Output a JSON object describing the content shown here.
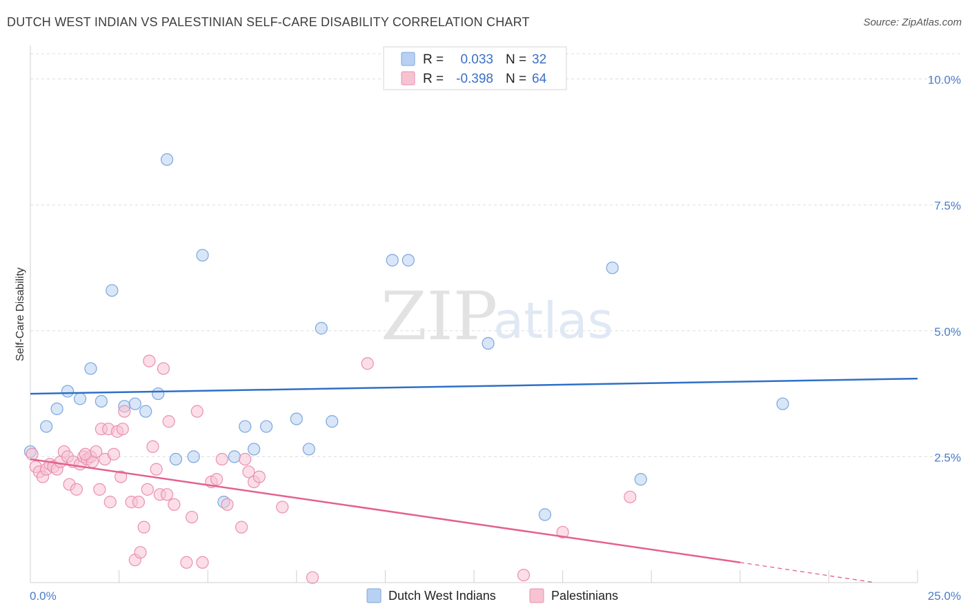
{
  "header": {
    "title": "DUTCH WEST INDIAN VS PALESTINIAN SELF-CARE DISABILITY CORRELATION CHART",
    "source": "Source: ZipAtlas.com"
  },
  "watermark": {
    "part1": "ZIP",
    "part2": "atlas"
  },
  "colors": {
    "blue_fill": "#b8d1f3",
    "blue_stroke": "#7aa5dd",
    "blue_line": "#2e6fc7",
    "pink_fill": "#f7c3d3",
    "pink_stroke": "#ea8fae",
    "pink_line": "#e4608e"
  },
  "legend": {
    "rows": [
      {
        "r_label": "R =",
        "r_value": "0.033",
        "n_label": "N =",
        "n_value": "32"
      },
      {
        "r_label": "R =",
        "r_value": "-0.398",
        "n_label": "N =",
        "n_value": "64"
      }
    ]
  },
  "bottom_legend": [
    "Dutch West Indians",
    "Palestinians"
  ],
  "chart_data": {
    "type": "scatter",
    "title": "DUTCH WEST INDIAN VS PALESTINIAN SELF-CARE DISABILITY CORRELATION CHART",
    "ylabel": "Self-Care Disability",
    "xlabel": "",
    "xlim": [
      0,
      25
    ],
    "ylim": [
      0,
      10.5
    ],
    "x_ticks": [
      {
        "value": 0,
        "label": "0.0%"
      },
      {
        "value": 25,
        "label": "25.0%"
      }
    ],
    "y_ticks": [
      {
        "value": 2.5,
        "label": "2.5%"
      },
      {
        "value": 5.0,
        "label": "5.0%"
      },
      {
        "value": 7.5,
        "label": "7.5%"
      },
      {
        "value": 10.0,
        "label": "10.0%"
      }
    ],
    "grid": true,
    "legend_position": "top-center",
    "series": [
      {
        "name": "Dutch West Indians",
        "r": 0.033,
        "n": 32,
        "trend": {
          "x": [
            0,
            25
          ],
          "y": [
            3.75,
            4.05
          ]
        },
        "points": [
          [
            0.0,
            2.6
          ],
          [
            0.45,
            3.1
          ],
          [
            0.75,
            3.45
          ],
          [
            1.05,
            3.8
          ],
          [
            1.4,
            3.65
          ],
          [
            1.7,
            4.25
          ],
          [
            2.0,
            3.6
          ],
          [
            2.3,
            5.8
          ],
          [
            2.65,
            3.5
          ],
          [
            2.95,
            3.55
          ],
          [
            3.25,
            3.4
          ],
          [
            3.6,
            3.75
          ],
          [
            3.85,
            8.4
          ],
          [
            4.1,
            2.45
          ],
          [
            4.6,
            2.5
          ],
          [
            4.85,
            6.5
          ],
          [
            5.45,
            1.6
          ],
          [
            5.75,
            2.5
          ],
          [
            6.05,
            3.1
          ],
          [
            6.3,
            2.65
          ],
          [
            6.65,
            3.1
          ],
          [
            7.5,
            3.25
          ],
          [
            7.85,
            2.65
          ],
          [
            8.2,
            5.05
          ],
          [
            8.5,
            3.2
          ],
          [
            10.2,
            6.4
          ],
          [
            10.65,
            6.4
          ],
          [
            12.9,
            4.75
          ],
          [
            14.5,
            1.35
          ],
          [
            16.4,
            6.25
          ],
          [
            17.2,
            2.05
          ],
          [
            21.2,
            3.55
          ]
        ]
      },
      {
        "name": "Palestinians",
        "r": -0.398,
        "n": 64,
        "trend": {
          "x": [
            0,
            20
          ],
          "y": [
            2.45,
            0.4
          ]
        },
        "trend_dashed": {
          "x": [
            20,
            23.8
          ],
          "y": [
            0.4,
            0.0
          ]
        },
        "points": [
          [
            0.05,
            2.55
          ],
          [
            0.15,
            2.3
          ],
          [
            0.25,
            2.2
          ],
          [
            0.35,
            2.1
          ],
          [
            0.45,
            2.25
          ],
          [
            0.55,
            2.35
          ],
          [
            0.65,
            2.3
          ],
          [
            0.75,
            2.25
          ],
          [
            0.85,
            2.4
          ],
          [
            0.95,
            2.6
          ],
          [
            1.05,
            2.5
          ],
          [
            1.1,
            1.95
          ],
          [
            1.2,
            2.4
          ],
          [
            1.3,
            1.85
          ],
          [
            1.4,
            2.35
          ],
          [
            1.5,
            2.5
          ],
          [
            1.6,
            2.45
          ],
          [
            1.7,
            2.5
          ],
          [
            1.75,
            2.4
          ],
          [
            1.85,
            2.6
          ],
          [
            1.95,
            1.85
          ],
          [
            2.0,
            3.05
          ],
          [
            2.1,
            2.45
          ],
          [
            2.2,
            3.05
          ],
          [
            2.25,
            1.6
          ],
          [
            2.35,
            2.55
          ],
          [
            2.45,
            3.0
          ],
          [
            2.55,
            2.1
          ],
          [
            2.6,
            3.05
          ],
          [
            2.65,
            3.4
          ],
          [
            2.85,
            1.6
          ],
          [
            2.95,
            0.45
          ],
          [
            3.05,
            1.6
          ],
          [
            3.2,
            1.1
          ],
          [
            3.3,
            1.85
          ],
          [
            3.35,
            4.4
          ],
          [
            3.45,
            2.7
          ],
          [
            3.55,
            2.25
          ],
          [
            3.65,
            1.75
          ],
          [
            3.75,
            4.25
          ],
          [
            3.85,
            1.75
          ],
          [
            3.9,
            3.2
          ],
          [
            4.05,
            1.55
          ],
          [
            4.4,
            0.4
          ],
          [
            4.55,
            1.3
          ],
          [
            4.7,
            3.4
          ],
          [
            4.85,
            0.4
          ],
          [
            5.1,
            2.0
          ],
          [
            5.25,
            2.05
          ],
          [
            5.4,
            2.45
          ],
          [
            5.55,
            1.55
          ],
          [
            5.95,
            1.1
          ],
          [
            6.05,
            2.45
          ],
          [
            6.15,
            2.2
          ],
          [
            6.3,
            2.0
          ],
          [
            6.45,
            2.1
          ],
          [
            7.1,
            1.5
          ],
          [
            7.95,
            0.1
          ],
          [
            9.5,
            4.35
          ],
          [
            13.9,
            0.15
          ],
          [
            15.0,
            1.0
          ],
          [
            16.9,
            1.7
          ],
          [
            3.1,
            0.6
          ],
          [
            1.55,
            2.55
          ]
        ]
      }
    ]
  }
}
